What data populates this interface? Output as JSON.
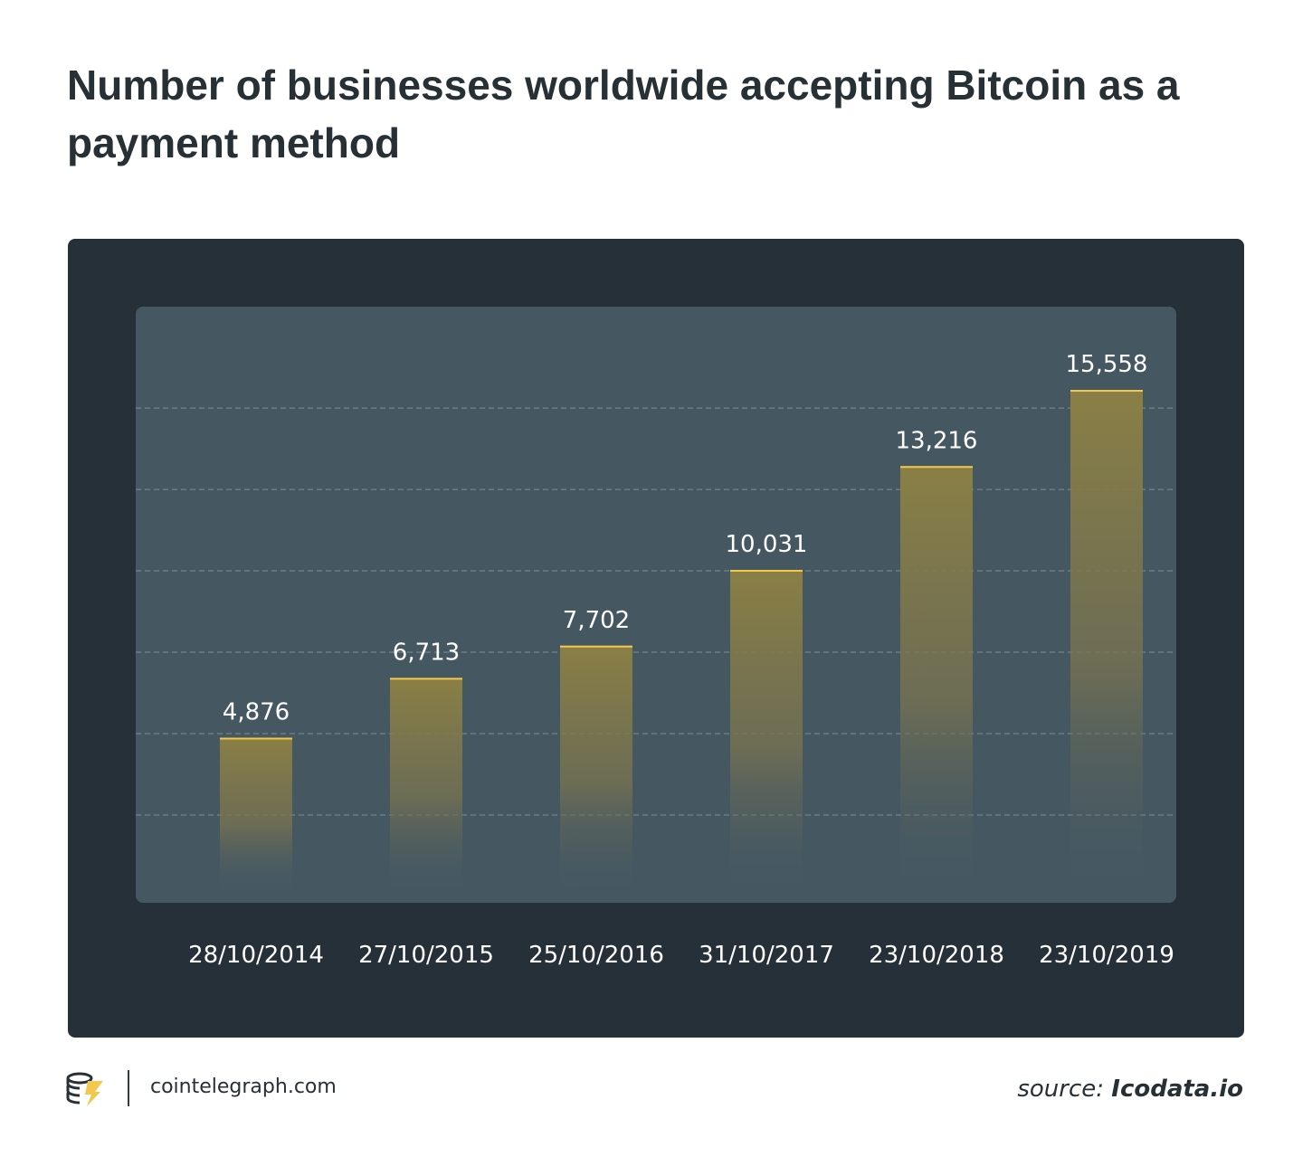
{
  "chart_data": {
    "type": "bar",
    "title": "Number of businesses worldwide accepting Bitcoin as a payment method",
    "categories": [
      "28/10/2014",
      "27/10/2015",
      "25/10/2016",
      "31/10/2017",
      "23/10/2018",
      "23/10/2019"
    ],
    "values": [
      4876,
      6713,
      7702,
      10031,
      13216,
      15558
    ],
    "value_labels": [
      "4,876",
      "6,713",
      "7,702",
      "10,031",
      "13,216",
      "15,558"
    ],
    "xlabel": "",
    "ylabel": "",
    "ylim": [
      0,
      17500
    ],
    "grid": true,
    "legend": false
  },
  "footer": {
    "site": "cointelegraph.com",
    "source_prefix": "source:",
    "source_name": "Icodata.io"
  },
  "colors": {
    "page_background": "#ffffff",
    "card_background": "#263038",
    "plot_background": "#455862",
    "bar_fill": "#8a7f45",
    "bar_top_line": "#f2c94c",
    "grid_line": "#6b7c86",
    "text_dark": "#263035",
    "text_light": "#ffffff"
  }
}
